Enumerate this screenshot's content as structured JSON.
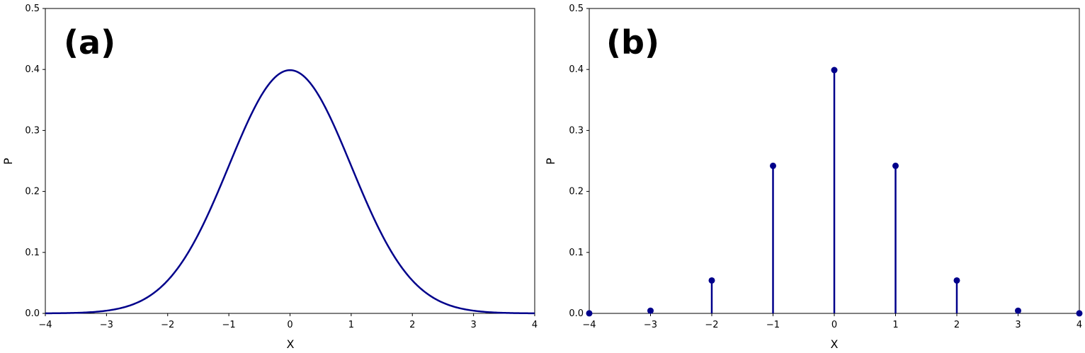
{
  "chart_data": [
    {
      "type": "line",
      "panel_label": "(a)",
      "title": "",
      "xlabel": "X",
      "ylabel": "P",
      "xlim": [
        -4,
        4
      ],
      "ylim": [
        0,
        0.5
      ],
      "xticks": [
        "−4",
        "−3",
        "−2",
        "−1",
        "0",
        "1",
        "2",
        "3",
        "4"
      ],
      "yticks": [
        "0.0",
        "0.1",
        "0.2",
        "0.3",
        "0.4",
        "0.5"
      ],
      "grid": false,
      "color": "#00008b",
      "series": [
        {
          "x": [
            -4.0,
            -3.75,
            -3.5,
            -3.25,
            -3.0,
            -2.75,
            -2.5,
            -2.25,
            -2.0,
            -1.75,
            -1.5,
            -1.25,
            -1.0,
            -0.75,
            -0.5,
            -0.25,
            0.0,
            0.25,
            0.5,
            0.75,
            1.0,
            1.25,
            1.5,
            1.75,
            2.0,
            2.25,
            2.5,
            2.75,
            3.0,
            3.25,
            3.5,
            3.75,
            4.0
          ],
          "values": [
            0.0001,
            0.0004,
            0.0009,
            0.002,
            0.0044,
            0.0091,
            0.0175,
            0.0317,
            0.054,
            0.0863,
            0.1295,
            0.1826,
            0.242,
            0.3011,
            0.3521,
            0.3867,
            0.3989,
            0.3867,
            0.3521,
            0.3011,
            0.242,
            0.1826,
            0.1295,
            0.0863,
            0.054,
            0.0317,
            0.0175,
            0.0091,
            0.0044,
            0.002,
            0.0009,
            0.0004,
            0.0001
          ]
        }
      ]
    },
    {
      "type": "stem",
      "panel_label": "(b)",
      "title": "",
      "xlabel": "X",
      "ylabel": "P",
      "xlim": [
        -4,
        4
      ],
      "ylim": [
        0,
        0.5
      ],
      "xticks": [
        "−4",
        "−3",
        "−2",
        "−1",
        "0",
        "1",
        "2",
        "3",
        "4"
      ],
      "yticks": [
        "0.0",
        "0.1",
        "0.2",
        "0.3",
        "0.4",
        "0.5"
      ],
      "grid": false,
      "color": "#00008b",
      "series": [
        {
          "x": [
            -4,
            -3,
            -2,
            -1,
            0,
            1,
            2,
            3,
            4
          ],
          "values": [
            0.0001,
            0.0044,
            0.054,
            0.242,
            0.399,
            0.242,
            0.054,
            0.0044,
            0.0001
          ]
        }
      ]
    }
  ]
}
